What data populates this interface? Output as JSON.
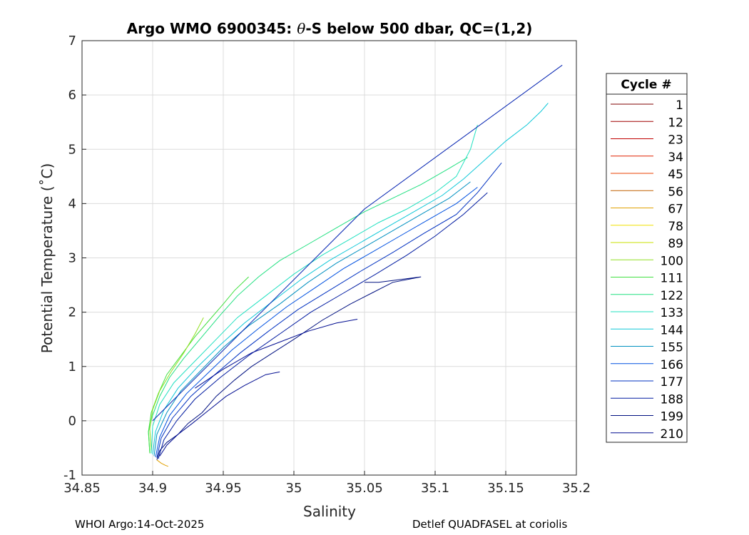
{
  "footer": {
    "left": "WHOI Argo:14-Oct-2025",
    "right": "Detlef QUADFASEL at coriolis"
  },
  "chart_data": {
    "type": "line",
    "title": "Argo WMO 6900345: θ-S below 500 dbar,  QC=(1,2)",
    "xlabel": "Salinity",
    "ylabel": "Potential Temperature (˚C)",
    "xlim": [
      34.85,
      35.2
    ],
    "ylim": [
      -1,
      7
    ],
    "xticks": [
      "34.85",
      "34.9",
      "34.95",
      "35",
      "35.05",
      "35.1",
      "35.15",
      "35.2"
    ],
    "yticks": [
      "-1",
      "0",
      "1",
      "2",
      "3",
      "4",
      "5",
      "6",
      "7"
    ],
    "grid": true,
    "legend": {
      "title": "Cycle #",
      "placement": "outside-right",
      "entries": [
        {
          "label": "1",
          "color": "#800000"
        },
        {
          "label": "12",
          "color": "#a00000"
        },
        {
          "label": "23",
          "color": "#c00000"
        },
        {
          "label": "34",
          "color": "#e02000"
        },
        {
          "label": "45",
          "color": "#e84000"
        },
        {
          "label": "56",
          "color": "#c06000"
        },
        {
          "label": "67",
          "color": "#e0a000"
        },
        {
          "label": "78",
          "color": "#f0e000"
        },
        {
          "label": "89",
          "color": "#c8e000"
        },
        {
          "label": "100",
          "color": "#90e020"
        },
        {
          "label": "111",
          "color": "#40e040"
        },
        {
          "label": "122",
          "color": "#20e080"
        },
        {
          "label": "133",
          "color": "#20e0c0"
        },
        {
          "label": "144",
          "color": "#10c8d8"
        },
        {
          "label": "155",
          "color": "#0090c0"
        },
        {
          "label": "166",
          "color": "#0050e0"
        },
        {
          "label": "177",
          "color": "#0030c0"
        },
        {
          "label": "188",
          "color": "#001aa0"
        },
        {
          "label": "199",
          "color": "#001080"
        },
        {
          "label": "210",
          "color": "#000c90"
        }
      ]
    },
    "series": [
      {
        "color": "#20e080",
        "x": [
          34.898,
          34.897,
          34.9,
          34.905,
          34.912,
          34.922,
          34.935,
          34.948,
          34.96,
          34.975,
          34.99,
          35.01,
          35.03,
          35.05,
          35.07,
          35.09,
          35.11,
          35.123
        ],
        "y": [
          -0.6,
          -0.2,
          0.1,
          0.45,
          0.8,
          1.15,
          1.55,
          1.95,
          2.3,
          2.65,
          2.95,
          3.25,
          3.55,
          3.85,
          4.1,
          4.35,
          4.65,
          4.85
        ]
      },
      {
        "color": "#40e040",
        "x": [
          34.898,
          34.897,
          34.899,
          34.904,
          34.91,
          34.92,
          34.93,
          34.94,
          34.95,
          34.958,
          34.968
        ],
        "y": [
          -0.6,
          -0.2,
          0.15,
          0.5,
          0.85,
          1.2,
          1.55,
          1.85,
          2.15,
          2.4,
          2.65
        ]
      },
      {
        "color": "#90e020",
        "x": [
          34.899,
          34.898,
          34.9,
          34.905,
          34.913,
          34.922,
          34.93,
          34.936
        ],
        "y": [
          -0.55,
          -0.15,
          0.2,
          0.55,
          0.9,
          1.25,
          1.6,
          1.9
        ]
      },
      {
        "color": "#20e0c0",
        "x": [
          34.899,
          34.9,
          34.905,
          34.915,
          34.93,
          34.945,
          34.96,
          34.98,
          35.0,
          35.02,
          35.04,
          35.06,
          35.08,
          35.1,
          35.115,
          35.125,
          35.13
        ],
        "y": [
          -0.6,
          -0.1,
          0.3,
          0.7,
          1.1,
          1.5,
          1.9,
          2.3,
          2.7,
          3.05,
          3.35,
          3.65,
          3.9,
          4.2,
          4.5,
          5.0,
          5.45
        ]
      },
      {
        "color": "#10c8d8",
        "x": [
          34.9,
          34.902,
          34.908,
          34.918,
          34.932,
          34.948,
          34.965,
          34.985,
          35.005,
          35.025,
          35.045,
          35.065,
          35.085,
          35.105,
          35.12,
          35.135,
          35.15,
          35.165,
          35.175,
          35.18
        ],
        "y": [
          -0.62,
          -0.2,
          0.2,
          0.6,
          1.0,
          1.4,
          1.8,
          2.2,
          2.6,
          2.95,
          3.25,
          3.55,
          3.85,
          4.15,
          4.45,
          4.8,
          5.15,
          5.45,
          5.7,
          5.85
        ]
      },
      {
        "color": "#0090c0",
        "x": [
          34.901,
          34.903,
          34.91,
          34.92,
          34.935,
          34.95,
          34.968,
          34.99,
          35.01,
          35.03,
          35.05,
          35.07,
          35.09,
          35.11,
          35.125
        ],
        "y": [
          -0.65,
          -0.25,
          0.15,
          0.55,
          0.95,
          1.35,
          1.75,
          2.15,
          2.55,
          2.9,
          3.2,
          3.5,
          3.8,
          4.1,
          4.4
        ]
      },
      {
        "color": "#0050e0",
        "x": [
          34.902,
          34.905,
          34.912,
          34.924,
          34.94,
          34.956,
          34.975,
          34.995,
          35.015,
          35.035,
          35.055,
          35.075,
          35.095,
          35.115,
          35.13
        ],
        "y": [
          -0.67,
          -0.3,
          0.1,
          0.5,
          0.9,
          1.3,
          1.7,
          2.1,
          2.45,
          2.8,
          3.1,
          3.4,
          3.7,
          4.0,
          4.3
        ]
      },
      {
        "color": "#0030c0",
        "x": [
          34.903,
          34.906,
          34.914,
          34.927,
          34.944,
          34.962,
          34.982,
          35.003,
          35.025,
          35.047,
          35.07,
          35.092,
          35.115,
          35.13,
          35.147
        ],
        "y": [
          -0.68,
          -0.32,
          0.05,
          0.45,
          0.85,
          1.25,
          1.65,
          2.05,
          2.4,
          2.75,
          3.1,
          3.45,
          3.8,
          4.2,
          4.75
        ]
      },
      {
        "color": "#001aa0",
        "x": [
          34.904,
          34.908,
          34.917,
          34.93,
          34.948,
          34.968,
          34.99,
          35.012,
          35.035,
          35.058,
          35.08,
          35.1,
          35.12,
          35.137
        ],
        "y": [
          -0.7,
          -0.35,
          0.0,
          0.4,
          0.8,
          1.2,
          1.6,
          2.0,
          2.35,
          2.7,
          3.05,
          3.4,
          3.8,
          4.2
        ]
      },
      {
        "color": "#0020b0",
        "x": [
          34.9,
          35.05,
          35.19
        ],
        "y": [
          0.0,
          3.9,
          6.55
        ]
      },
      {
        "color": "#001080",
        "x": [
          34.903,
          34.905,
          34.91,
          34.918,
          34.925,
          34.935,
          34.945,
          34.958,
          34.97,
          34.985,
          35.0,
          35.02,
          35.04,
          35.055,
          35.07,
          35.09,
          35.06,
          35.05
        ],
        "y": [
          -0.72,
          -0.55,
          -0.4,
          -0.25,
          -0.05,
          0.15,
          0.45,
          0.75,
          1.0,
          1.25,
          1.5,
          1.85,
          2.15,
          2.35,
          2.55,
          2.65,
          2.55,
          2.55
        ]
      },
      {
        "color": "#000c90",
        "x": [
          34.905,
          34.91,
          34.918,
          34.928,
          34.94,
          34.952,
          34.965,
          34.98,
          34.99
        ],
        "y": [
          -0.65,
          -0.45,
          -0.25,
          -0.05,
          0.2,
          0.45,
          0.65,
          0.85,
          0.9
        ]
      },
      {
        "color": "#000c90",
        "x": [
          34.93,
          34.95,
          34.97,
          34.99,
          35.01,
          35.03,
          35.045
        ],
        "y": [
          0.6,
          0.95,
          1.25,
          1.45,
          1.65,
          1.8,
          1.87
        ]
      },
      {
        "color": "#e0a000",
        "x": [
          34.903,
          34.906,
          34.909,
          34.911
        ],
        "y": [
          -0.72,
          -0.78,
          -0.82,
          -0.84
        ]
      }
    ]
  }
}
